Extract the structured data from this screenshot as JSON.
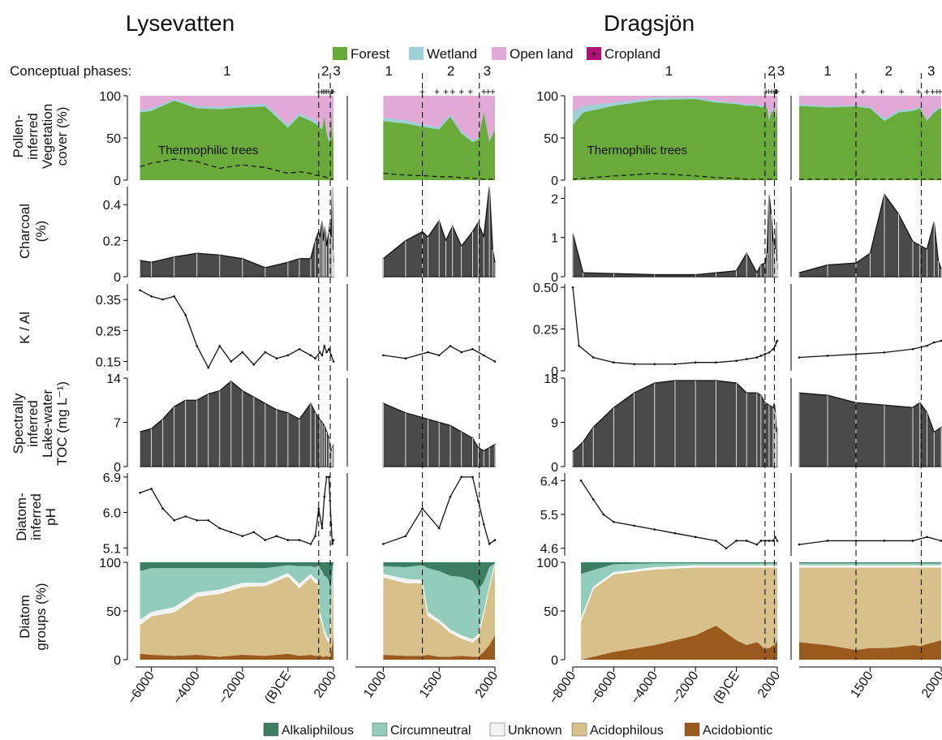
{
  "site_titles": [
    {
      "text": "Lysevatten",
      "color": "#4a90d9"
    },
    {
      "text": "Dragsjön",
      "color": "#6b2a1e"
    }
  ],
  "veg_legend": [
    {
      "label": "Forest",
      "color": "#6aaa3a"
    },
    {
      "label": "Wetland",
      "color": "#9fd0d6"
    },
    {
      "label": "Open land",
      "color": "#e2a9d7"
    },
    {
      "label": "Cropland",
      "color": "#b3107a"
    }
  ],
  "diatom_legend": [
    {
      "label": "Alkaliphilous",
      "color": "#3d7d63"
    },
    {
      "label": "Circumneutral",
      "color": "#94ccbb"
    },
    {
      "label": "Unknown",
      "color": "#f2f2f2"
    },
    {
      "label": "Acidophilous",
      "color": "#d8c08a"
    },
    {
      "label": "Acidobiontic",
      "color": "#9a5a1e"
    }
  ],
  "phases_label": "Conceptual phases:",
  "row_labels": [
    [
      "Pollen-",
      "inferred",
      "Vegetation",
      "cover (%)"
    ],
    [
      "Charcoal",
      "(%)"
    ],
    [
      "K / Al"
    ],
    [
      "Spectrally",
      "inferred",
      "Lake-water",
      "TOC  (mg L⁻¹)"
    ],
    [
      "Diatom-",
      "inferred",
      "pH"
    ],
    [
      "Diatom",
      "groups (%)"
    ]
  ],
  "annotation_thermophilic": "Thermophilic trees",
  "panel_ticks": {
    "lys_long": [
      "−6000",
      "−4000",
      "−2000",
      "(B)CE",
      "2000"
    ],
    "lys_short": [
      "1000",
      "1500",
      "2000"
    ],
    "drag_long": [
      "−8000",
      "−6000",
      "−4000",
      "−2000",
      "(B)CE",
      "2000"
    ],
    "drag_short": [
      "1500",
      "2000"
    ]
  },
  "y_ticks": {
    "lys_veg": [
      "100",
      "50",
      "0"
    ],
    "lys_charcoal": [
      "0.4",
      "0.2",
      "0"
    ],
    "lys_kal": [
      "0.35",
      "0.25",
      "0.15"
    ],
    "lys_toc": [
      "14",
      "7",
      "0"
    ],
    "lys_ph": [
      "6.9",
      "6.0",
      "5.1"
    ],
    "lys_diatom": [
      "100",
      "50",
      "0"
    ],
    "drag_veg": [
      "100",
      "50",
      "0"
    ],
    "drag_charcoal": [
      "2",
      "1",
      "0"
    ],
    "drag_kal": [
      "0.50",
      "0.25",
      "0"
    ],
    "drag_toc": [
      "18",
      "9",
      "0"
    ],
    "drag_ph": [
      "6.4",
      "5.5",
      "4.6"
    ],
    "drag_diatom": [
      "100",
      "50",
      "0"
    ]
  },
  "phase_labels": {
    "lys_long": [
      "1",
      "2",
      "3"
    ],
    "lys_short": [
      "1",
      "2",
      "3"
    ],
    "drag_long": [
      "1",
      "2",
      "3"
    ],
    "drag_short": [
      "1",
      "2",
      "3"
    ]
  },
  "chart_data": {
    "type": "area",
    "panels": {
      "lys_long": {
        "x_range": [
          -6700,
          2000
        ],
        "phase_bounds": [
          1350,
          1860
        ]
      },
      "lys_short": {
        "x_range": [
          750,
          2000
        ],
        "phase_bounds": [
          1350,
          1860
        ]
      },
      "drag_long": {
        "x_range": [
          -8000,
          2000
        ],
        "phase_bounds": [
          1400,
          1860
        ]
      },
      "drag_short": {
        "x_range": [
          1000,
          2000
        ],
        "phase_bounds": [
          1400,
          1860
        ]
      }
    },
    "lysevatten": {
      "vegetation": {
        "ylim": [
          0,
          100
        ],
        "x": [
          -6500,
          -6000,
          -5000,
          -4000,
          -3000,
          -2000,
          -1000,
          0,
          500,
          1000,
          1200,
          1400,
          1500,
          1600,
          1700,
          1800,
          1850,
          1900,
          1950,
          2000
        ],
        "forest": [
          80,
          82,
          94,
          85,
          84,
          86,
          87,
          62,
          76,
          70,
          67,
          62,
          60,
          75,
          55,
          45,
          48,
          80,
          45,
          60
        ],
        "wetland": [
          3,
          3,
          2,
          3,
          3,
          3,
          3,
          4,
          3,
          4,
          4,
          3,
          3,
          3,
          3,
          3,
          2,
          2,
          2,
          2
        ],
        "thermophilic": [
          16,
          20,
          25,
          22,
          14,
          18,
          15,
          8,
          10,
          8,
          6,
          5,
          4,
          4,
          3,
          2,
          2,
          1,
          1,
          1
        ],
        "cropland_marks": [
          1350,
          1480,
          1560,
          1620,
          1700,
          1780,
          1900,
          1940,
          1980
        ]
      },
      "charcoal": {
        "ylim": [
          0,
          0.5
        ],
        "x": [
          -6500,
          -6000,
          -5000,
          -4000,
          -3000,
          -2000,
          -1000,
          0,
          500,
          1000,
          1200,
          1350,
          1400,
          1500,
          1560,
          1620,
          1700,
          1800,
          1850,
          1900,
          1950,
          1980,
          2000
        ],
        "values": [
          0.09,
          0.08,
          0.11,
          0.13,
          0.12,
          0.1,
          0.05,
          0.08,
          0.1,
          0.1,
          0.2,
          0.25,
          0.22,
          0.31,
          0.2,
          0.28,
          0.17,
          0.25,
          0.3,
          0.22,
          0.5,
          0.15,
          0.08
        ]
      },
      "k_al": {
        "ylim": [
          0.12,
          0.4
        ],
        "x": [
          -6500,
          -6000,
          -5500,
          -5000,
          -4500,
          -4000,
          -3500,
          -3000,
          -2500,
          -2000,
          -1500,
          -1000,
          -500,
          0,
          500,
          1000,
          1200,
          1400,
          1500,
          1600,
          1700,
          1800,
          1900,
          2000
        ],
        "values": [
          0.38,
          0.36,
          0.35,
          0.36,
          0.3,
          0.2,
          0.13,
          0.2,
          0.15,
          0.18,
          0.14,
          0.18,
          0.16,
          0.17,
          0.19,
          0.17,
          0.16,
          0.18,
          0.17,
          0.2,
          0.18,
          0.19,
          0.17,
          0.15
        ]
      },
      "toc": {
        "ylim": [
          0,
          14
        ],
        "x": [
          -6500,
          -6000,
          -5500,
          -5000,
          -4500,
          -4000,
          -3500,
          -3000,
          -2500,
          -2000,
          -1500,
          -1000,
          -500,
          0,
          500,
          1000,
          1200,
          1400,
          1500,
          1600,
          1700,
          1800,
          1850,
          1900,
          1950,
          2000
        ],
        "values": [
          5.5,
          6.0,
          7.5,
          9.5,
          10.5,
          10.5,
          11.5,
          12.0,
          13.5,
          12.0,
          11.0,
          10.0,
          9.0,
          8.5,
          7.5,
          10.0,
          8.5,
          7.5,
          7.0,
          6.5,
          5.5,
          4.5,
          3.0,
          2.5,
          3.0,
          3.5
        ]
      },
      "ph": {
        "ylim": [
          4.9,
          7.0
        ],
        "x": [
          -6500,
          -6000,
          -5500,
          -5000,
          -4500,
          -4000,
          -3500,
          -3000,
          -2500,
          -2000,
          -1500,
          -1000,
          -500,
          0,
          500,
          1000,
          1200,
          1350,
          1500,
          1600,
          1700,
          1800,
          1850,
          1900,
          1950,
          2000
        ],
        "values": [
          6.5,
          6.6,
          6.1,
          5.8,
          5.9,
          5.8,
          5.8,
          5.6,
          5.5,
          5.4,
          5.5,
          5.3,
          5.4,
          5.3,
          5.3,
          5.2,
          5.4,
          6.1,
          5.6,
          6.4,
          6.9,
          6.9,
          6.3,
          5.7,
          5.2,
          5.3
        ]
      },
      "diatom_groups": {
        "ylim": [
          0,
          100
        ],
        "x": [
          -6500,
          -6000,
          -5000,
          -4000,
          -3000,
          -2000,
          -1000,
          0,
          500,
          1000,
          1200,
          1350,
          1400,
          1500,
          1600,
          1700,
          1800,
          1850,
          1900,
          1950,
          2000
        ],
        "acidobiontic": [
          6,
          5,
          4,
          5,
          3,
          5,
          4,
          6,
          4,
          5,
          4,
          4,
          5,
          3,
          3,
          4,
          3,
          3,
          8,
          15,
          25
        ],
        "acidophilous": [
          30,
          40,
          45,
          60,
          65,
          70,
          72,
          80,
          70,
          80,
          75,
          75,
          40,
          35,
          25,
          18,
          15,
          20,
          40,
          60,
          72
        ],
        "unknown": [
          5,
          4,
          5,
          4,
          4,
          4,
          3,
          3,
          4,
          3,
          4,
          3,
          4,
          3,
          3,
          3,
          3,
          3,
          2,
          2,
          2
        ],
        "circumneutral": [
          50,
          45,
          40,
          25,
          22,
          15,
          15,
          8,
          18,
          8,
          12,
          15,
          45,
          50,
          55,
          60,
          60,
          45,
          30,
          18,
          0
        ],
        "alkaliphilous": [
          9,
          6,
          6,
          6,
          6,
          6,
          6,
          3,
          4,
          4,
          5,
          3,
          6,
          9,
          14,
          15,
          19,
          29,
          20,
          5,
          1
        ]
      }
    },
    "dragsjon": {
      "vegetation": {
        "ylim": [
          0,
          100
        ],
        "x": [
          -8000,
          -7500,
          -6000,
          -4000,
          -2000,
          -1000,
          0,
          500,
          1000,
          1200,
          1400,
          1500,
          1600,
          1700,
          1800,
          1850,
          1900,
          1950,
          2000
        ],
        "forest": [
          65,
          80,
          88,
          95,
          96,
          92,
          90,
          88,
          88,
          86,
          87,
          85,
          70,
          80,
          82,
          85,
          70,
          80,
          86
        ],
        "wetland": [
          15,
          8,
          4,
          3,
          2,
          2,
          2,
          2,
          2,
          2,
          2,
          2,
          3,
          3,
          2,
          2,
          2,
          2,
          2
        ],
        "thermophilic": [
          1,
          2,
          5,
          8,
          5,
          3,
          2,
          1,
          1,
          1,
          1,
          1,
          1,
          1,
          1,
          1,
          1,
          1,
          1
        ],
        "cropland_marks": [
          1450,
          1580,
          1720,
          1840,
          1900,
          1940,
          1970,
          1990
        ]
      },
      "charcoal": {
        "ylim": [
          0,
          2.3
        ],
        "x": [
          -8000,
          -7500,
          -6000,
          -4000,
          -2000,
          -1000,
          0,
          500,
          1000,
          1200,
          1400,
          1500,
          1600,
          1700,
          1800,
          1850,
          1900,
          1950,
          1980,
          2000
        ],
        "values": [
          1.1,
          0.1,
          0.08,
          0.05,
          0.05,
          0.1,
          0.15,
          0.6,
          0.1,
          0.3,
          0.35,
          0.6,
          2.1,
          1.6,
          0.9,
          0.8,
          0.7,
          1.4,
          0.4,
          0.2
        ]
      },
      "k_al": {
        "ylim": [
          0,
          0.52
        ],
        "x": [
          -8000,
          -7700,
          -7000,
          -6000,
          -5000,
          -4000,
          -3000,
          -2000,
          -1000,
          0,
          500,
          1000,
          1200,
          1400,
          1600,
          1800,
          1900,
          1950,
          2000
        ],
        "values": [
          0.5,
          0.15,
          0.08,
          0.05,
          0.04,
          0.04,
          0.04,
          0.05,
          0.05,
          0.06,
          0.07,
          0.08,
          0.09,
          0.1,
          0.11,
          0.13,
          0.15,
          0.17,
          0.18
        ]
      },
      "toc": {
        "ylim": [
          0,
          18
        ],
        "x": [
          -8000,
          -7500,
          -7000,
          -6000,
          -5000,
          -4000,
          -3000,
          -2000,
          -1000,
          0,
          500,
          1000,
          1200,
          1400,
          1600,
          1800,
          1850,
          1900,
          1950,
          2000
        ],
        "values": [
          3,
          5,
          8,
          12,
          15,
          17,
          17.5,
          17.5,
          17.5,
          17,
          15,
          15,
          14.5,
          13,
          12.5,
          12,
          13,
          11,
          7,
          8
        ]
      },
      "ph": {
        "ylim": [
          4.4,
          6.6
        ],
        "x": [
          -7600,
          -7000,
          -6500,
          -6000,
          -5000,
          -4000,
          -3000,
          -2000,
          -1000,
          -500,
          0,
          500,
          1000,
          1200,
          1400,
          1600,
          1800,
          1900,
          2000
        ],
        "values": [
          6.4,
          5.9,
          5.5,
          5.3,
          5.2,
          5.1,
          5.0,
          4.9,
          4.8,
          4.6,
          4.8,
          4.8,
          4.7,
          4.8,
          4.8,
          4.8,
          4.8,
          4.9,
          4.8
        ]
      },
      "diatom_groups": {
        "ylim": [
          0,
          100
        ],
        "x": [
          -7600,
          -7000,
          -6000,
          -4000,
          -2000,
          -1000,
          0,
          500,
          1000,
          1200,
          1400,
          1500,
          1600,
          1700,
          1800,
          1850,
          1900,
          1950,
          2000
        ],
        "acidobiontic": [
          0,
          3,
          8,
          15,
          25,
          35,
          20,
          15,
          18,
          15,
          10,
          12,
          12,
          13,
          15,
          14,
          16,
          18,
          20
        ],
        "acidophilous": [
          40,
          70,
          80,
          78,
          70,
          60,
          75,
          80,
          77,
          80,
          85,
          83,
          83,
          82,
          80,
          81,
          79,
          77,
          75
        ],
        "unknown": [
          3,
          2,
          2,
          2,
          2,
          2,
          2,
          2,
          2,
          2,
          2,
          2,
          2,
          2,
          2,
          2,
          2,
          2,
          2
        ],
        "circumneutral": [
          45,
          17,
          8,
          4,
          2,
          2,
          2,
          2,
          2,
          2,
          2,
          2,
          2,
          2,
          2,
          2,
          2,
          2,
          2
        ],
        "alkaliphilous": [
          12,
          8,
          2,
          1,
          1,
          1,
          1,
          1,
          1,
          1,
          1,
          1,
          1,
          1,
          1,
          1,
          1,
          1,
          1
        ]
      }
    }
  }
}
